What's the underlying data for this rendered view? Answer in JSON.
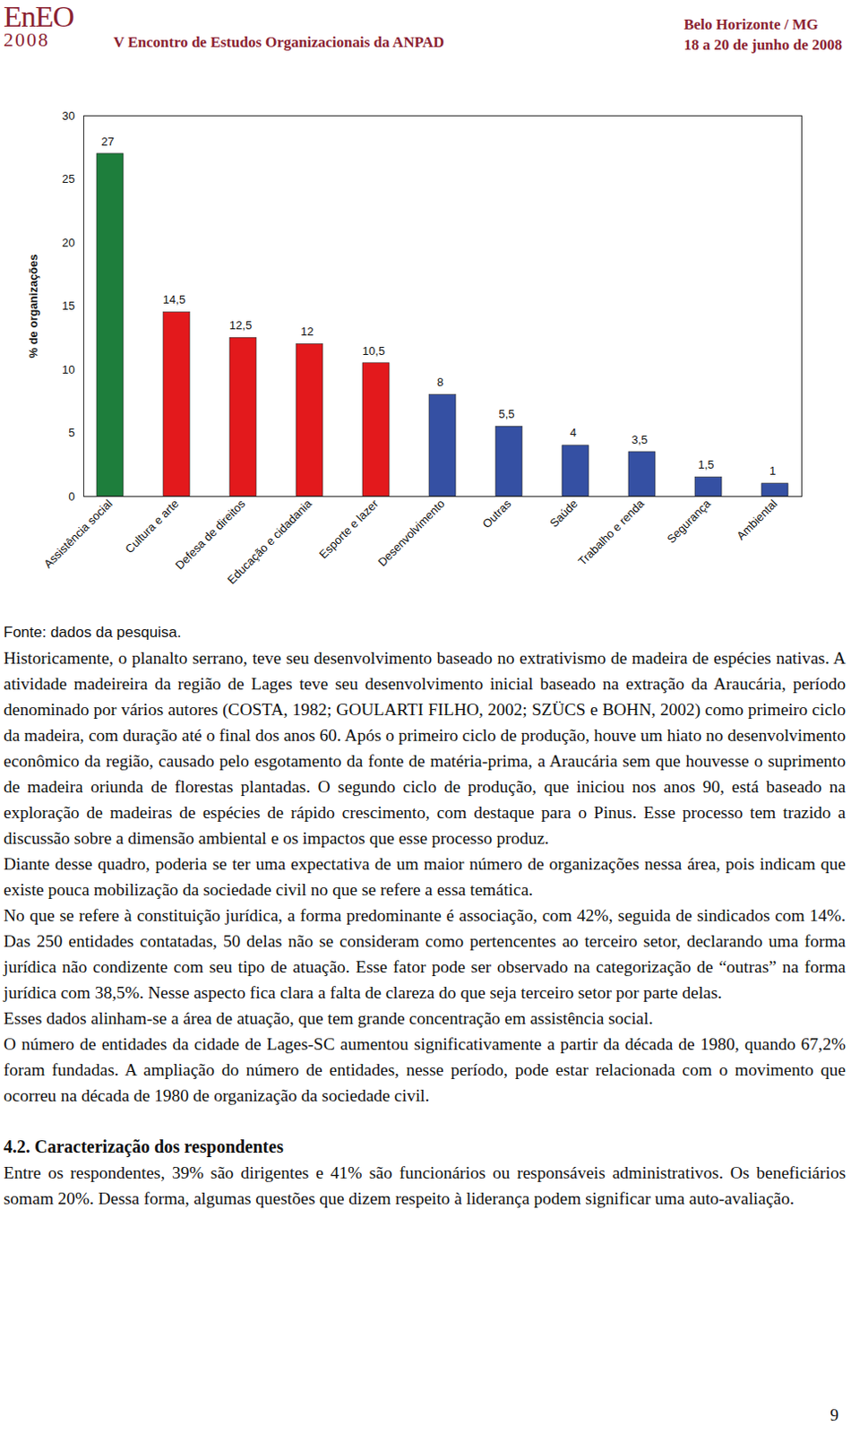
{
  "header": {
    "logo": "EnEO",
    "logo_year": "2008",
    "title": "V Encontro de Estudos Organizacionais da ANPAD",
    "location": "Belo Horizonte / MG",
    "dates": "18 a 20 de junho de 2008"
  },
  "chart_data": {
    "type": "bar",
    "y_label": "% de organizações",
    "categories": [
      "Assistência social",
      "Cultura e arte",
      "Defesa de direitos",
      "Educação e cidadania",
      "Esporte e lazer",
      "Desenvolvimento",
      "Outras",
      "Saúde",
      "Trabalho e renda",
      "Segurança",
      "Ambiental"
    ],
    "values": [
      27,
      14.5,
      12.5,
      12,
      10.5,
      8,
      5.5,
      4,
      3.5,
      1.5,
      1
    ],
    "value_labels": [
      "27",
      "14,5",
      "12,5",
      "12",
      "10,5",
      "8",
      "5,5",
      "4",
      "3,5",
      "1,5",
      "1"
    ],
    "colors": [
      "#1e7e3c",
      "#e3191c",
      "#e3191c",
      "#e3191c",
      "#e3191c",
      "#3550a3",
      "#3550a3",
      "#3550a3",
      "#3550a3",
      "#3550a3",
      "#3550a3"
    ],
    "ylim": [
      0,
      30
    ],
    "yticks": [
      0,
      5,
      10,
      15,
      20,
      25,
      30
    ],
    "data_labels": true,
    "grid": false
  },
  "caption": "Fonte: dados da pesquisa.",
  "body": [
    {
      "type": "paragraph",
      "text": "Historicamente, o planalto serrano, teve seu desenvolvimento baseado no extrativismo de madeira de espécies nativas. A atividade madeireira da região de Lages teve seu desenvolvimento inicial baseado na extração da Araucária, período denominado por vários autores (COSTA, 1982; GOULARTI FILHO, 2002; SZÜCS e BOHN, 2002) como primeiro ciclo da madeira, com duração até o final dos anos 60. Após o primeiro ciclo de produção, houve um hiato no desenvolvimento econômico da região, causado pelo esgotamento da fonte de matéria-prima, a Araucária sem que houvesse o suprimento de madeira oriunda de florestas plantadas. O segundo ciclo de produção, que iniciou nos anos 90, está baseado na exploração de madeiras de espécies de rápido crescimento, com destaque para o Pinus. Esse processo tem trazido a discussão sobre a dimensão ambiental e os impactos que esse processo produz."
    },
    {
      "type": "paragraph",
      "text": "Diante desse quadro, poderia se ter uma expectativa de um maior número de organizações nessa área, pois indicam que existe pouca mobilização da sociedade civil no que se refere a essa temática."
    },
    {
      "type": "paragraph",
      "text": "No que se refere à constituição jurídica, a forma predominante é associação, com 42%, seguida de sindicados com 14%. Das 250 entidades contatadas, 50 delas não se consideram como pertencentes ao terceiro setor, declarando uma forma jurídica não condizente com seu tipo de atuação. Esse fator pode ser observado na categorização de “outras” na forma jurídica com 38,5%. Nesse aspecto fica clara a falta de clareza do que seja terceiro setor por parte delas."
    },
    {
      "type": "paragraph",
      "text": "Esses dados alinham-se a área de atuação, que tem grande concentração em assistência social."
    },
    {
      "type": "paragraph",
      "text": "O número de entidades da cidade de Lages-SC aumentou significativamente a partir da década de 1980, quando 67,2% foram fundadas. A ampliação do número de entidades, nesse período, pode estar relacionada com o movimento que ocorreu na década de 1980 de organização da sociedade civil."
    },
    {
      "type": "heading",
      "text": "4.2. Caracterização dos respondentes"
    },
    {
      "type": "paragraph",
      "text": "Entre os respondentes, 39% são dirigentes e 41% são funcionários ou responsáveis administrativos. Os beneficiários somam 20%. Dessa forma, algumas questões que dizem respeito à liderança podem significar uma auto-avaliação."
    }
  ],
  "page_number": "9"
}
